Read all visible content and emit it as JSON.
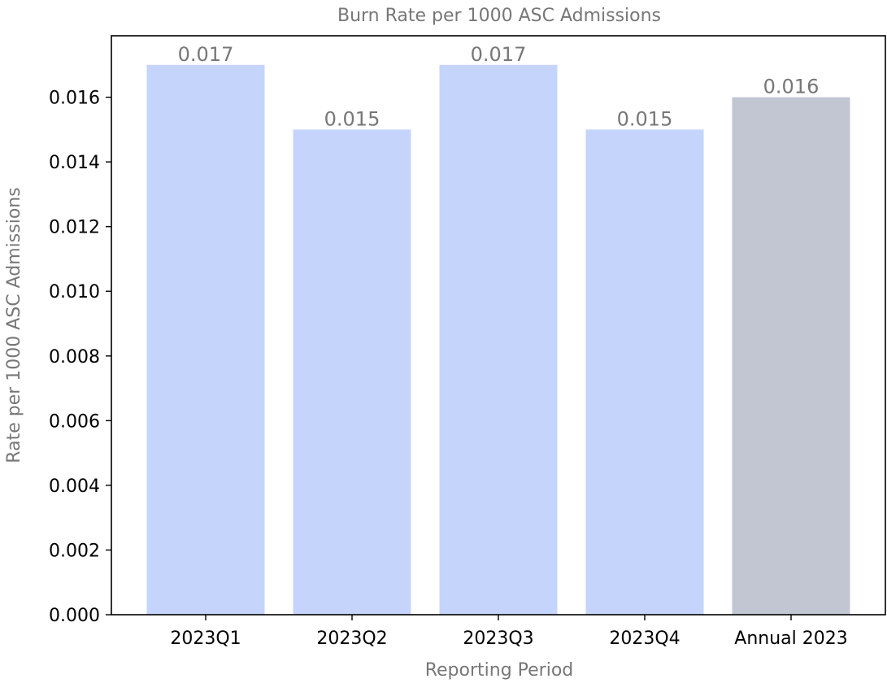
{
  "chart_data": {
    "type": "bar",
    "title": "Burn Rate per 1000 ASC Admissions",
    "xlabel": "Reporting Period",
    "ylabel": "Rate per 1000 ASC Admissions",
    "categories": [
      "2023Q1",
      "2023Q2",
      "2023Q3",
      "2023Q4",
      "Annual 2023"
    ],
    "values": [
      0.017,
      0.015,
      0.017,
      0.015,
      0.016
    ],
    "data_labels": [
      "0.017",
      "0.015",
      "0.017",
      "0.015",
      "0.016"
    ],
    "bar_colors": [
      "#c5d4fa",
      "#c5d4fa",
      "#c5d4fa",
      "#c5d4fa",
      "#c2c6d2"
    ],
    "ylim": [
      0,
      0.0179
    ],
    "yticks": [
      0,
      0.002,
      0.004,
      0.006,
      0.008,
      0.01,
      0.012,
      0.014,
      0.016
    ],
    "ytick_labels": [
      "0.000",
      "0.002",
      "0.004",
      "0.006",
      "0.008",
      "0.010",
      "0.012",
      "0.014",
      "0.016"
    ],
    "grid": false,
    "legend": "none"
  }
}
